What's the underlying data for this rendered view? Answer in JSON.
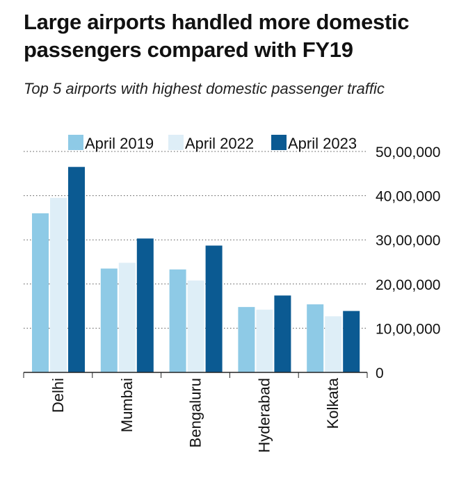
{
  "title": "Large airports handled more domestic passengers compared with FY19",
  "subtitle": "Top 5 airports with highest domestic passenger traffic",
  "chart_data": {
    "type": "bar",
    "title": "Large airports handled more domestic passengers compared with FY19",
    "subtitle": "Top 5 airports with highest domestic passenger traffic",
    "categories": [
      "Delhi",
      "Mumbai",
      "Bengaluru",
      "Hyderabad",
      "Kolkata"
    ],
    "series": [
      {
        "name": "April 2019",
        "color": "#8ecae6",
        "values": [
          3600000,
          2350000,
          2330000,
          1480000,
          1540000
        ]
      },
      {
        "name": "April 2022",
        "color": "#deeef7",
        "values": [
          3950000,
          2480000,
          2080000,
          1420000,
          1270000
        ]
      },
      {
        "name": "April 2023",
        "color": "#0b5a92",
        "values": [
          4650000,
          3030000,
          2870000,
          1740000,
          1390000
        ]
      }
    ],
    "yticks": [
      0,
      1000000,
      2000000,
      3000000,
      4000000,
      5000000
    ],
    "ytick_labels": [
      "0",
      "10,00,000",
      "20,00,000",
      "30,00,000",
      "40,00,000",
      "50,00,000"
    ],
    "ylim": [
      0,
      5000000
    ],
    "xlabel": "",
    "ylabel": "",
    "grid": true,
    "y_axis_position": "right",
    "legend_position": "top"
  }
}
